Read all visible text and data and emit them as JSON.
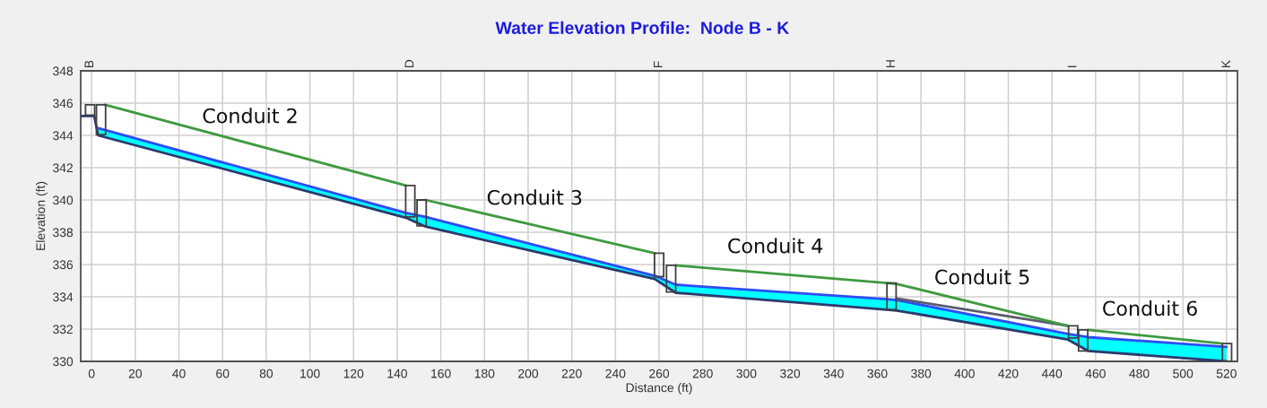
{
  "chart_data": {
    "type": "line",
    "title": "Water Elevation Profile:  Node B - K",
    "xlabel": "Distance (ft)",
    "ylabel": "Elevation (ft)",
    "xlim": [
      -5,
      525
    ],
    "xticks": [
      0,
      20,
      40,
      60,
      80,
      100,
      120,
      140,
      160,
      180,
      200,
      220,
      240,
      260,
      280,
      300,
      320,
      340,
      360,
      380,
      400,
      420,
      440,
      460,
      480,
      500,
      520
    ],
    "ylim": [
      330,
      348
    ],
    "yticks": [
      330,
      332,
      334,
      336,
      338,
      340,
      342,
      344,
      346,
      348
    ],
    "grid": true,
    "annotations": [
      "B",
      "D",
      "F",
      "H",
      "I",
      "K",
      "Conduit 2",
      "Conduit 3",
      "Conduit 4",
      "Conduit 5",
      "Conduit 6"
    ],
    "series": [
      {
        "color": "#2b3a6e",
        "x": [
          -5,
          1.2,
          3,
          144,
          153,
          258,
          267.6,
          364.3,
          368.8,
          447.3,
          456.5,
          520
        ],
        "values": [
          345.2,
          345.2,
          344.0,
          338.9,
          338.35,
          335.1,
          334.25,
          333.2,
          333.15,
          331.35,
          330.65,
          330.0
        ]
      },
      {
        "color": "#2f4cf2",
        "x": [
          3,
          144,
          153,
          258,
          267.6,
          364.3,
          368.8,
          447.3,
          456.5,
          520
        ],
        "values": [
          344.45,
          339.2,
          338.95,
          335.3,
          334.75,
          333.85,
          333.8,
          331.7,
          331.5,
          330.9
        ],
        "lower": [
          344.0,
          338.9,
          338.35,
          335.1,
          334.25,
          333.2,
          333.15,
          331.35,
          330.65,
          330.0
        ],
        "upper": [
          344.45,
          339.2,
          338.95,
          335.3,
          334.75,
          333.85,
          333.8,
          331.7,
          331.5,
          330.9
        ]
      },
      {
        "color": "#5a5a70",
        "x": [
          368.8,
          447.3
        ],
        "values": [
          333.9,
          332.2
        ]
      },
      {
        "color": "#3f9a3f",
        "x": [
          6.2,
          144,
          148.5,
          153,
          258,
          262.5,
          267.6,
          364.3,
          368.8,
          447.3,
          452,
          456.5,
          518
        ],
        "values": [
          345.9,
          340.9,
          null,
          340.0,
          336.7,
          null,
          335.95,
          334.85,
          334.8,
          332.2,
          null,
          331.95,
          331.1
        ]
      },
      {
        "type": "bar",
        "color": "#404040",
        "x": [
          -0.7,
          4.3,
          146,
          151.2,
          260,
          265.5,
          366.5,
          449.7,
          454.3,
          520.2
        ],
        "base": [
          345.25,
          344.05,
          338.95,
          338.4,
          335.25,
          334.3,
          333.2,
          331.45,
          330.65,
          330.0
        ],
        "values": [
          0.65,
          1.85,
          1.95,
          1.6,
          1.45,
          1.65,
          1.65,
          0.75,
          1.3,
          1.1
        ]
      }
    ]
  }
}
